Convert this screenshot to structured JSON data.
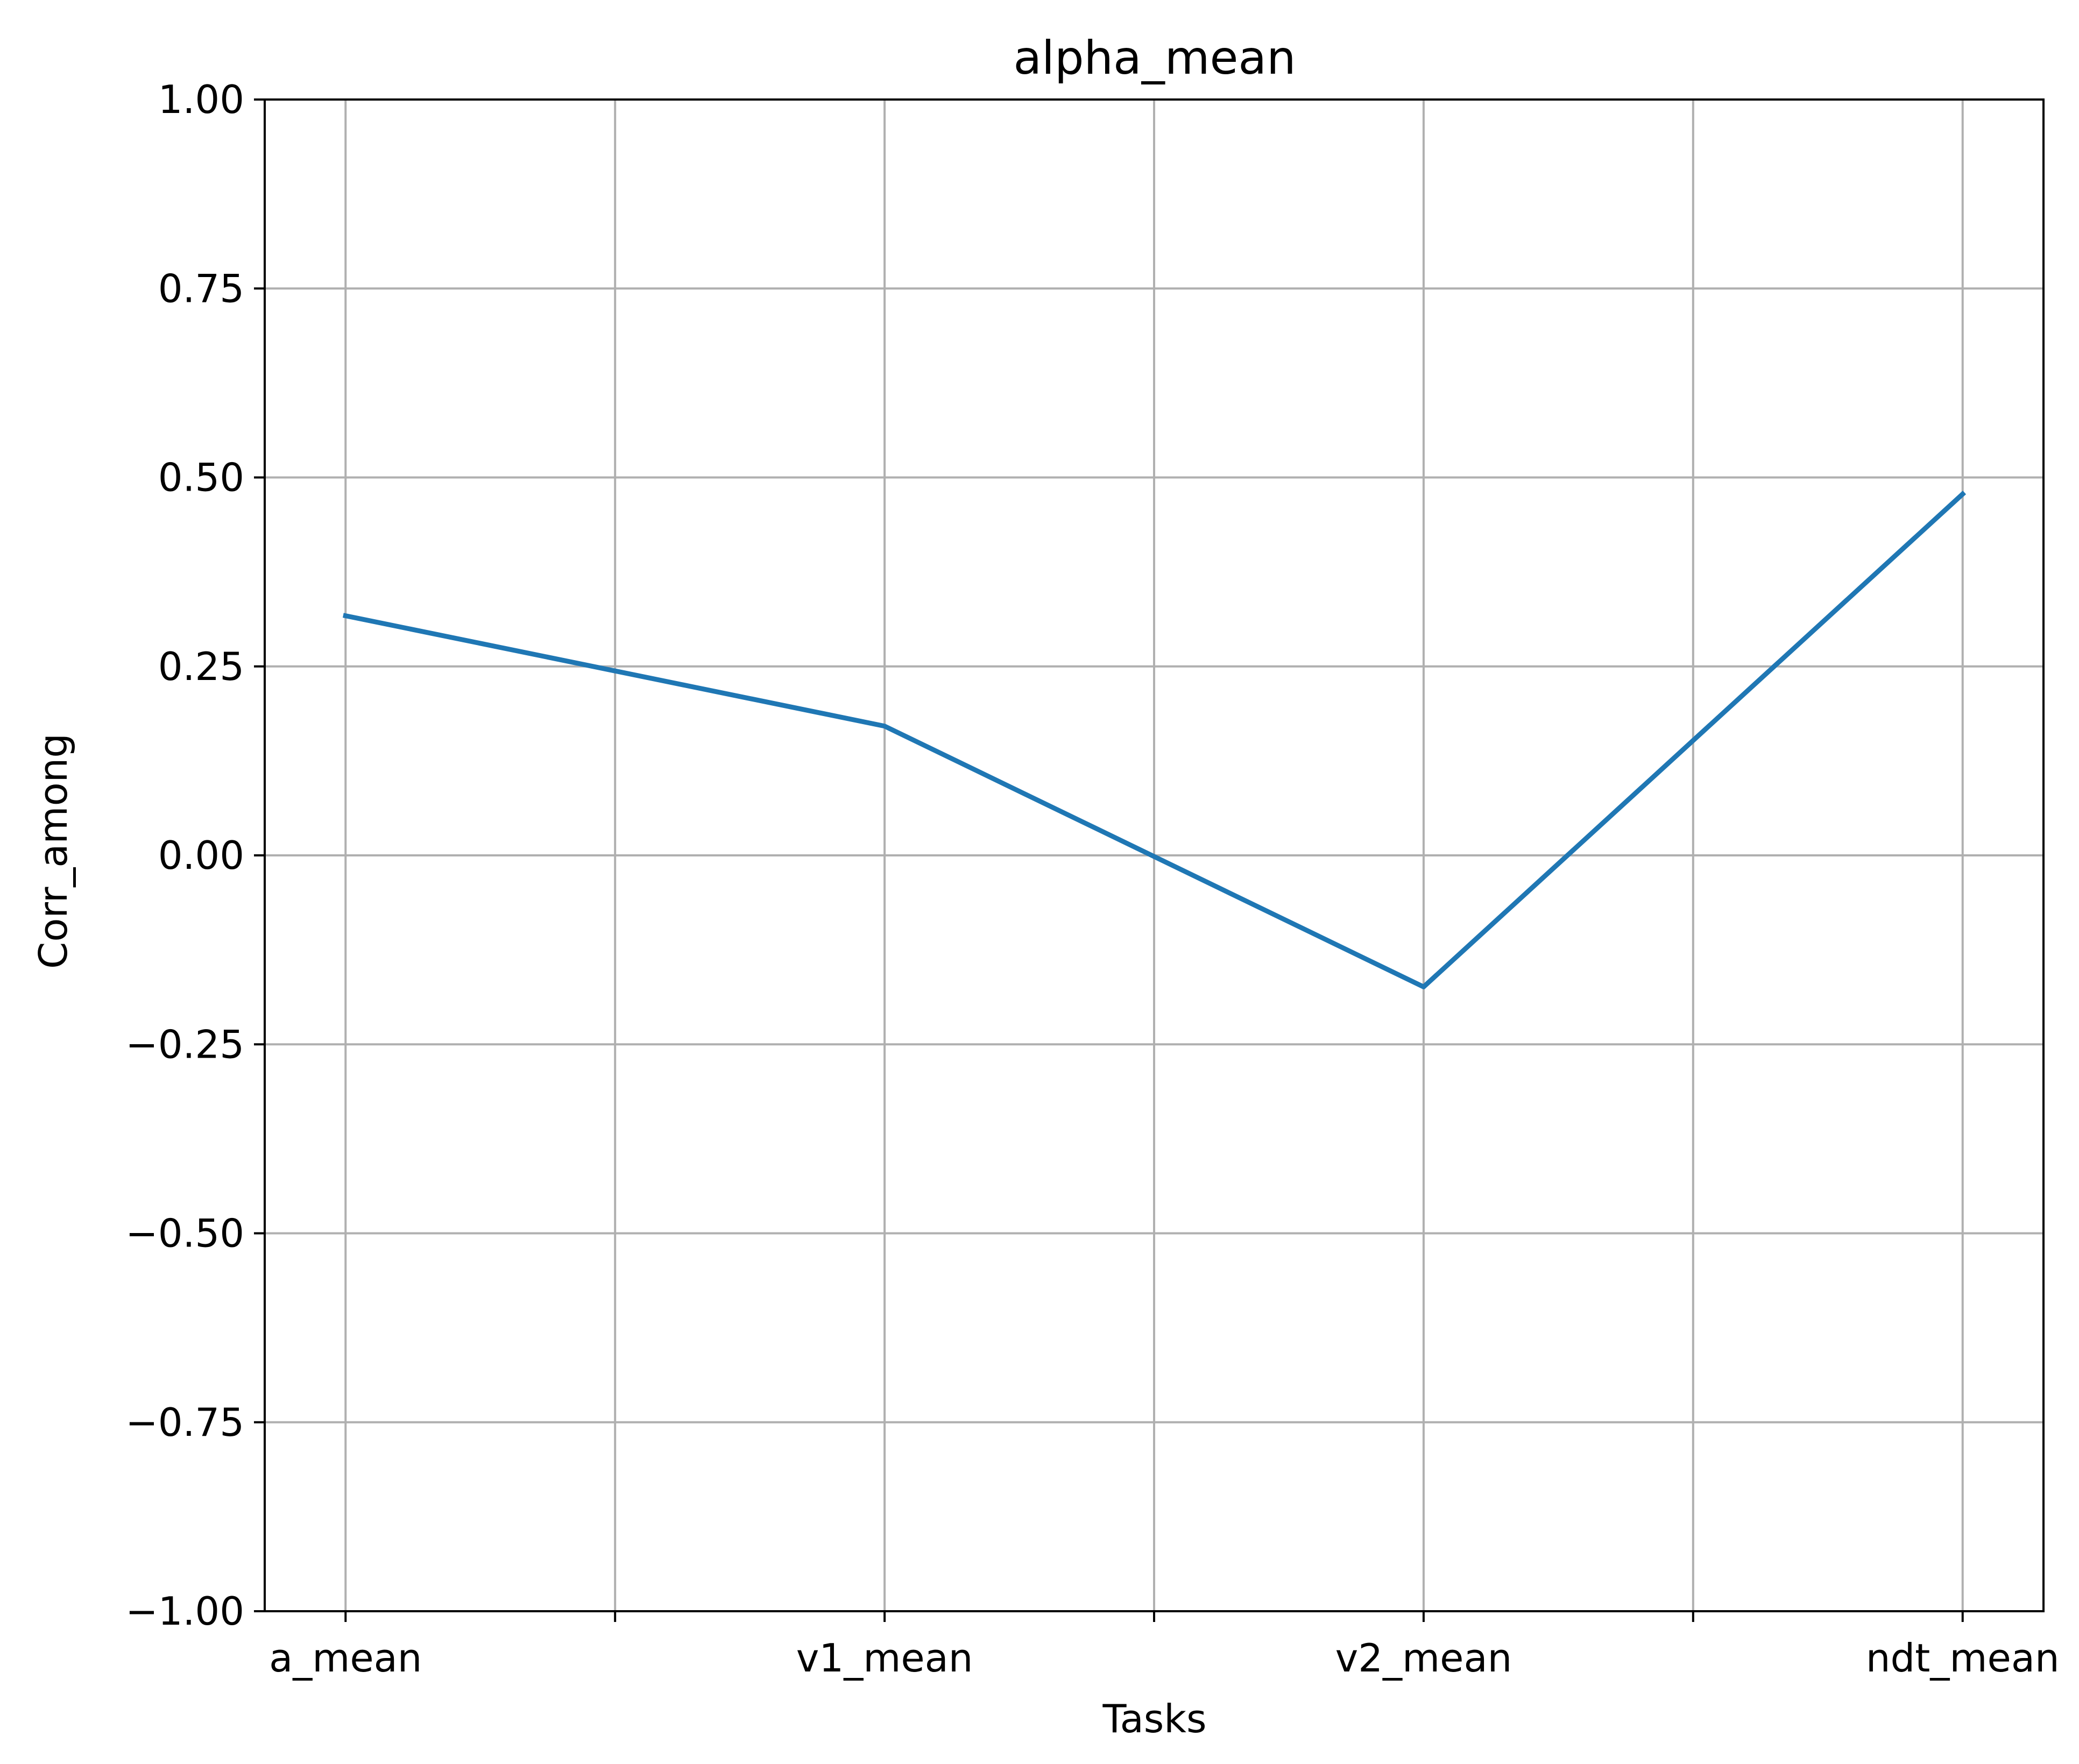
{
  "chart_data": {
    "type": "line",
    "title": "alpha_mean",
    "xlabel": "Tasks",
    "ylabel": "Corr_among",
    "categories": [
      "a_mean",
      "v1_mean",
      "v2_mean",
      "ndt_mean"
    ],
    "x_tick_labels": [
      "a_mean",
      "",
      "v1_mean",
      "",
      "v2_mean",
      "",
      "ndt_mean"
    ],
    "series": [
      {
        "values": [
          0.317,
          0.171,
          -0.174,
          0.478
        ]
      }
    ],
    "ylim": [
      -1.0,
      1.0
    ],
    "y_ticks": [
      -1.0,
      -0.75,
      -0.5,
      -0.25,
      0.0,
      0.25,
      0.5,
      0.75,
      1.0
    ],
    "y_tick_labels": [
      "−1.00",
      "−0.75",
      "−0.50",
      "−0.25",
      "0.00",
      "0.25",
      "0.50",
      "0.75",
      "1.00"
    ],
    "grid": true,
    "colors": {
      "line": "#1f77b4",
      "grid": "#b0b0b0",
      "axes": "#000000"
    }
  }
}
